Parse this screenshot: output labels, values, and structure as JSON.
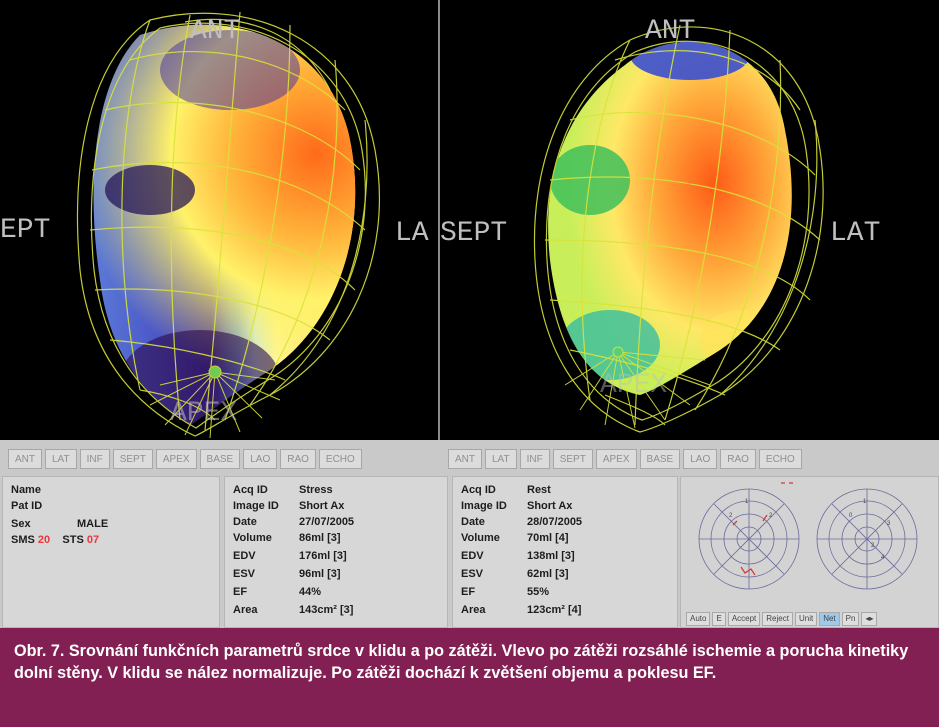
{
  "left_view": {
    "labels": {
      "ant": "ANT",
      "sept": "EPT",
      "lat": "LA",
      "apex": "APEX"
    }
  },
  "right_view": {
    "labels": {
      "ant": "ANT",
      "sept": "SEPT",
      "lat": "LAT",
      "apex": "APEX"
    }
  },
  "toolbar_left": [
    "ANT",
    "LAT",
    "INF",
    "SEPT",
    "APEX",
    "BASE",
    "LAO",
    "RAO",
    "ECHO"
  ],
  "toolbar_right": [
    "ANT",
    "LAT",
    "INF",
    "SEPT",
    "APEX",
    "BASE",
    "LAO",
    "RAO",
    "ECHO"
  ],
  "patient": {
    "name_label": "Name",
    "patid_label": "Pat ID",
    "sex_label": "Sex",
    "sex_value": "MALE",
    "sms_label": "SMS",
    "sms_value": "20",
    "sts_label": "STS",
    "sts_value": "07"
  },
  "stress": {
    "acq_label": "Acq ID",
    "acq_value": "Stress",
    "image_label": "Image ID",
    "image_value": "Short Ax",
    "date_label": "Date",
    "date_value": "27/07/2005",
    "volume_label": "Volume",
    "volume_value": "86ml [3]",
    "edv_label": "EDV",
    "edv_value": "176ml [3]",
    "esv_label": "ESV",
    "esv_value": "96ml [3]",
    "ef_label": "EF",
    "ef_value": "44%",
    "area_label": "Area",
    "area_value": "143cm² [3]"
  },
  "rest": {
    "acq_label": "Acq ID",
    "acq_value": "Rest",
    "image_label": "Image ID",
    "image_value": "Short Ax",
    "date_label": "Date",
    "date_value": "28/07/2005",
    "volume_label": "Volume",
    "volume_value": "70ml [4]",
    "edv_label": "EDV",
    "edv_value": "138ml [3]",
    "esv_label": "ESV",
    "esv_value": "62ml [3]",
    "ef_label": "EF",
    "ef_value": "55%",
    "area_label": "Area",
    "area_value": "123cm² [4]"
  },
  "polar_buttons": [
    "Auto",
    "E",
    "Accept",
    "Reject",
    "Unit",
    "Net",
    "Pn"
  ],
  "caption": "Obr. 7. Srovnání funkčních parametrů srdce v klidu a po zátěži. Vlevo po zátěži rozsáhlé ischemie a porucha kinetiky dolní stěny. V klidu se nález normalizuje. Po zátěži dochází k zvětšení objemu a poklesu EF.",
  "colors": {
    "caption_bg": "#832053",
    "mesh": "#d9e33a",
    "label": "#bfbfbf"
  }
}
